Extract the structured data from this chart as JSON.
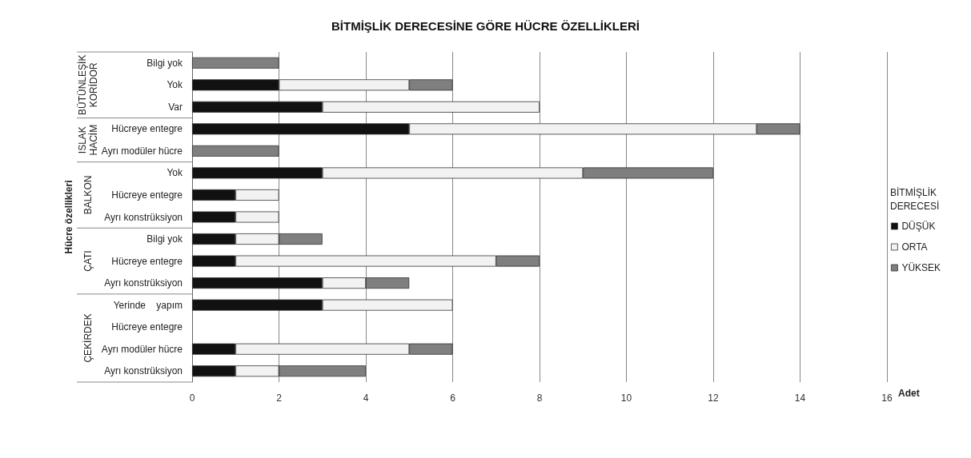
{
  "chart_data": {
    "type": "bar",
    "orientation": "horizontal",
    "stacked": true,
    "title": "BİTMİŞLİK DERECESİNE GÖRE HÜCRE ÖZELLİKLERİ",
    "xlabel": "Adet",
    "ylabel": "Hücre özellikleri",
    "legend_title": "BİTMİŞLİK DERECESİ",
    "legend": "right",
    "grid": "x",
    "categories": [
      "Bilgi yok",
      "Yok",
      "Var",
      "Hücreye entegre",
      "Ayrı modüler hücre",
      "Yok",
      "Hücreye entegre",
      "Ayrı konstrüksiyon",
      "Bilgi yok",
      "Hücreye entegre",
      "Ayrı konstrüksiyon",
      "Yerinde    yapım",
      "Hücreye entegre",
      "Ayrı modüler hücre",
      "Ayrı konstrüksiyon"
    ],
    "annotations": [
      "BÜTÜNLEŞİK KORİDOR",
      "ISLAK HACİM",
      "BALKON",
      "ÇATI",
      "ÇEKİRDEK"
    ],
    "xlim": [
      0,
      16
    ],
    "xticks": [
      0,
      2,
      4,
      6,
      8,
      10,
      12,
      14,
      16
    ],
    "series": [
      {
        "name": "DÜŞÜK",
        "color": "#111111",
        "values": [
          0,
          2,
          3,
          5,
          0,
          3,
          1,
          1,
          1,
          1,
          3,
          3,
          0,
          1,
          1
        ]
      },
      {
        "name": "ORTA",
        "color": "#f2f2f2",
        "values": [
          0,
          3,
          5,
          8,
          0,
          6,
          1,
          1,
          1,
          6,
          1,
          3,
          0,
          4,
          1
        ]
      },
      {
        "name": "YÜKSEK",
        "color": "#7f7f7f",
        "values": [
          2,
          1,
          0,
          1,
          2,
          3,
          0,
          0,
          1,
          1,
          1,
          0,
          0,
          1,
          2
        ]
      }
    ]
  }
}
